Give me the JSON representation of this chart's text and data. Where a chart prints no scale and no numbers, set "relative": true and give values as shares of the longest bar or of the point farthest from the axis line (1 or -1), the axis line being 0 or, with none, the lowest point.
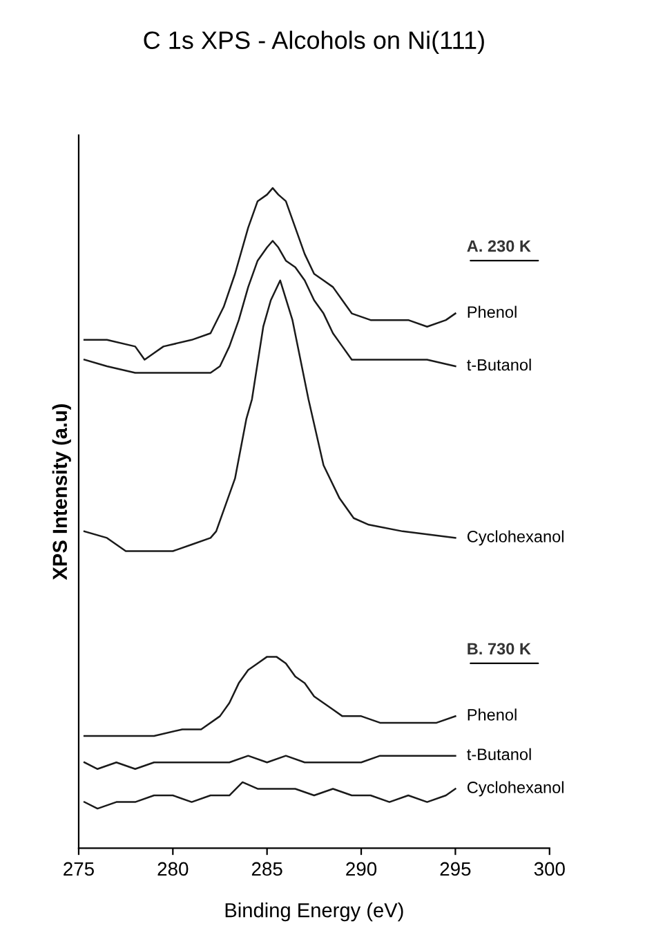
{
  "chart_data": {
    "type": "line",
    "title": "C 1s XPS - Alcohols on Ni(111)",
    "xlabel": "Binding Energy (eV)",
    "ylabel": "XPS Intensity (a.u)",
    "relative": true,
    "tick_labels": "x",
    "legend": false,
    "xlim": [
      275,
      300
    ],
    "xticks": [
      275,
      280,
      285,
      290,
      295,
      300
    ],
    "annotations": [
      "A. 230 K",
      "B. 730 K"
    ],
    "series": [
      {
        "name": "Phenol",
        "color": "#1a1a1a",
        "x": [
          275.3,
          276.5,
          278,
          278.5,
          279.5,
          281,
          282,
          282.7,
          283.3,
          284,
          284.5,
          285,
          285.3,
          285.6,
          286,
          286.5,
          287,
          287.5,
          288,
          288.5,
          289,
          289.5,
          290.5,
          291.5,
          292.5,
          293.5,
          294.5,
          295
        ],
        "values": [
          0.77,
          0.77,
          0.76,
          0.74,
          0.76,
          0.77,
          0.78,
          0.82,
          0.87,
          0.94,
          0.98,
          0.99,
          1.0,
          0.99,
          0.98,
          0.94,
          0.9,
          0.87,
          0.86,
          0.85,
          0.83,
          0.81,
          0.8,
          0.8,
          0.8,
          0.79,
          0.8,
          0.81
        ]
      },
      {
        "name": "t-Butanol",
        "color": "#1a1a1a",
        "x": [
          275.3,
          276.5,
          278,
          279.5,
          281,
          282,
          282.5,
          283,
          283.5,
          284,
          284.5,
          285,
          285.3,
          285.6,
          286,
          286.5,
          287,
          287.5,
          288,
          288.5,
          289,
          289.5,
          290.5,
          291.5,
          292.5,
          293.5,
          295
        ],
        "values": [
          0.74,
          0.73,
          0.72,
          0.72,
          0.72,
          0.72,
          0.73,
          0.76,
          0.8,
          0.85,
          0.89,
          0.91,
          0.92,
          0.91,
          0.89,
          0.88,
          0.86,
          0.83,
          0.81,
          0.78,
          0.76,
          0.74,
          0.74,
          0.74,
          0.74,
          0.74,
          0.73
        ]
      },
      {
        "name": "Cyclohexanol",
        "color": "#1a1a1a",
        "x": [
          275.3,
          276.5,
          277.5,
          278.9,
          280,
          281,
          282,
          282.3,
          282.8,
          283.3,
          283.9,
          284.2,
          284.8,
          285.2,
          285.7,
          286.35,
          287.2,
          288.0,
          288.85,
          289.6,
          290.4,
          292.2,
          295
        ],
        "values": [
          0.48,
          0.47,
          0.45,
          0.45,
          0.45,
          0.46,
          0.47,
          0.48,
          0.52,
          0.56,
          0.65,
          0.68,
          0.79,
          0.83,
          0.86,
          0.8,
          0.68,
          0.58,
          0.53,
          0.5,
          0.49,
          0.48,
          0.47
        ]
      },
      {
        "name": "Phenol",
        "color": "#1a1a1a",
        "x": [
          275.3,
          277,
          279,
          280.5,
          281.5,
          282.5,
          283,
          283.5,
          284,
          284.5,
          285,
          285.5,
          286,
          286.5,
          287,
          287.5,
          288,
          288.5,
          289,
          290,
          291,
          292,
          293,
          294,
          295
        ],
        "values": [
          0.17,
          0.17,
          0.17,
          0.18,
          0.18,
          0.2,
          0.22,
          0.25,
          0.27,
          0.28,
          0.29,
          0.29,
          0.28,
          0.26,
          0.25,
          0.23,
          0.22,
          0.21,
          0.2,
          0.2,
          0.19,
          0.19,
          0.19,
          0.19,
          0.2
        ]
      },
      {
        "name": "t-Butanol",
        "color": "#1a1a1a",
        "x": [
          275.3,
          276,
          277,
          278,
          279,
          280,
          281,
          282,
          283,
          284,
          285,
          286,
          287,
          288,
          289,
          290,
          291,
          292,
          293,
          294,
          295
        ],
        "values": [
          0.13,
          0.12,
          0.13,
          0.12,
          0.13,
          0.13,
          0.13,
          0.13,
          0.13,
          0.14,
          0.13,
          0.14,
          0.13,
          0.13,
          0.13,
          0.13,
          0.14,
          0.14,
          0.14,
          0.14,
          0.14
        ]
      },
      {
        "name": "Cyclohexanol",
        "color": "#1a1a1a",
        "x": [
          275.3,
          276,
          277,
          278,
          279,
          280,
          281,
          282,
          283,
          283.7,
          284.5,
          285.5,
          286.5,
          287.5,
          288.5,
          289.5,
          290.5,
          291.5,
          292.5,
          293.5,
          294.5,
          295
        ],
        "values": [
          0.07,
          0.06,
          0.07,
          0.07,
          0.08,
          0.08,
          0.07,
          0.08,
          0.08,
          0.1,
          0.09,
          0.09,
          0.09,
          0.08,
          0.09,
          0.08,
          0.08,
          0.07,
          0.08,
          0.07,
          0.08,
          0.09
        ]
      }
    ]
  }
}
